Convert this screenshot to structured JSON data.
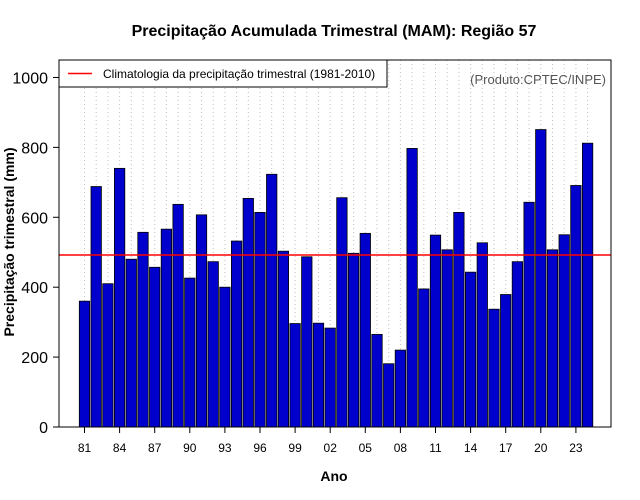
{
  "chart_data": {
    "type": "bar",
    "title": "Precipitação Acumulada Trimestral (MAM): Região 57",
    "xlabel": "Ano",
    "ylabel": "Precipitação trimestral (mm)",
    "ylim": [
      0,
      1050
    ],
    "yticks": [
      0,
      200,
      400,
      600,
      800,
      1000
    ],
    "categories": [
      "1981",
      "1982",
      "1983",
      "1984",
      "1985",
      "1986",
      "1987",
      "1988",
      "1989",
      "1990",
      "1991",
      "1992",
      "1993",
      "1994",
      "1995",
      "1996",
      "1997",
      "1998",
      "1999",
      "2000",
      "2001",
      "2002",
      "2003",
      "2004",
      "2005",
      "2006",
      "2007",
      "2008",
      "2009",
      "2010",
      "2011",
      "2012",
      "2013",
      "2014",
      "2015",
      "2016",
      "2017",
      "2018",
      "2019",
      "2020",
      "2021",
      "2022",
      "2023",
      "2024"
    ],
    "xtick_labels": [
      "81",
      "84",
      "87",
      "90",
      "93",
      "96",
      "99",
      "02",
      "05",
      "08",
      "11",
      "14",
      "17",
      "20",
      "23"
    ],
    "values": [
      360,
      688,
      410,
      740,
      480,
      557,
      457,
      566,
      637,
      426,
      607,
      473,
      400,
      532,
      654,
      614,
      723,
      503,
      296,
      487,
      297,
      283,
      656,
      497,
      554,
      265,
      181,
      220,
      797,
      395,
      549,
      507,
      614,
      443,
      527,
      337,
      379,
      473,
      643,
      851,
      507,
      550,
      691,
      812
    ],
    "climatology": 492,
    "legend": "Climatologia da precipitação trimestral (1981-2010)",
    "legend_position": "top-left",
    "source_label": "(Produto:CPTEC/INPE)",
    "grid": "vertical-dotted",
    "colors": {
      "bar_fill": "#0000CC",
      "bar_edge": "#000000",
      "climatology_line": "#FF0000",
      "grid": "#BEBEBE"
    }
  }
}
